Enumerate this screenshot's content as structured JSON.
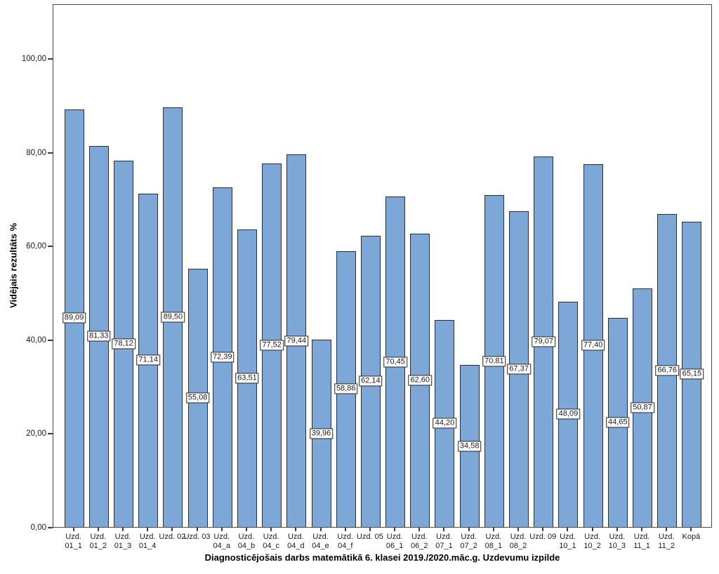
{
  "chart_data": {
    "type": "bar",
    "title": "Diagnosticējošais darbs matemātikā 6. klasei 2019./2020.māc.g. Uzdevumu izpilde",
    "xlabel": "Diagnosticējošais darbs matemātikā 6. klasei 2019./2020.māc.g. Uzdevumu izpilde",
    "ylabel": "Vidējais rezultāts %",
    "ylim": [
      0,
      111.7
    ],
    "ytick_values": [
      0,
      20,
      40,
      60,
      80,
      100
    ],
    "ytick_labels": [
      "0,00",
      "20,00",
      "40,00",
      "60,00",
      "80,00",
      "100,00"
    ],
    "grid": false,
    "legend_position": "none",
    "bar_label_position": "middle-of-bar",
    "categories": [
      "Uzd. 01_1",
      "Uzd. 01_2",
      "Uzd. 01_3",
      "Uzd. 01_4",
      "Uzd. 02",
      "Uzd. 03",
      "Uzd. 04_a",
      "Uzd. 04_b",
      "Uzd. 04_c",
      "Uzd. 04_d",
      "Uzd. 04_e",
      "Uzd. 04_f",
      "Uzd. 05",
      "Uzd. 06_1",
      "Uzd. 06_2",
      "Uzd. 07_1",
      "Uzd. 07_2",
      "Uzd. 08_1",
      "Uzd. 08_2",
      "Uzd. 09",
      "Uzd. 10_1",
      "Uzd. 10_2",
      "Uzd. 10_3",
      "Uzd. 11_1",
      "Uzd. 11_2",
      "Kopā"
    ],
    "categories_display": [
      "Uzd.\n01_1",
      "Uzd.\n01_2",
      "Uzd.\n01_3",
      "Uzd.\n01_4",
      "Uzd. 02",
      "Uzd. 03",
      "Uzd.\n04_a",
      "Uzd.\n04_b",
      "Uzd.\n04_c",
      "Uzd.\n04_d",
      "Uzd.\n04_e",
      "Uzd.\n04_f",
      "Uzd. 05",
      "Uzd.\n06_1",
      "Uzd.\n06_2",
      "Uzd.\n07_1",
      "Uzd.\n07_2",
      "Uzd.\n08_1",
      "Uzd.\n08_2",
      "Uzd. 09",
      "Uzd.\n10_1",
      "Uzd.\n10_2",
      "Uzd.\n10_3",
      "Uzd.\n11_1",
      "Uzd.\n11_2",
      "Kopā"
    ],
    "values": [
      89.09,
      81.33,
      78.12,
      71.14,
      89.5,
      55.08,
      72.39,
      63.51,
      77.52,
      79.44,
      39.96,
      58.86,
      62.14,
      70.45,
      62.6,
      44.2,
      34.58,
      70.81,
      67.37,
      79.07,
      48.09,
      77.4,
      44.65,
      50.87,
      66.76,
      65.15
    ],
    "value_labels": [
      "89,09",
      "81,33",
      "78,12",
      "71,14",
      "89,50",
      "55,08",
      "72,39",
      "63,51",
      "77,52",
      "79,44",
      "39,96",
      "58,86",
      "62,14",
      "70,45",
      "62,60",
      "44,20",
      "34,58",
      "70,81",
      "67,37",
      "79,07",
      "48,09",
      "77,40",
      "44,65",
      "50,87",
      "66,76",
      "65,15"
    ],
    "colors": {
      "bar_fill": "#7DA7D6",
      "bar_border": "#2E2E2E",
      "plot_border": "#4A4A4A",
      "tick": "#3C3C3C",
      "text": "#1A1A1A",
      "background": "#FFFFFF"
    }
  }
}
